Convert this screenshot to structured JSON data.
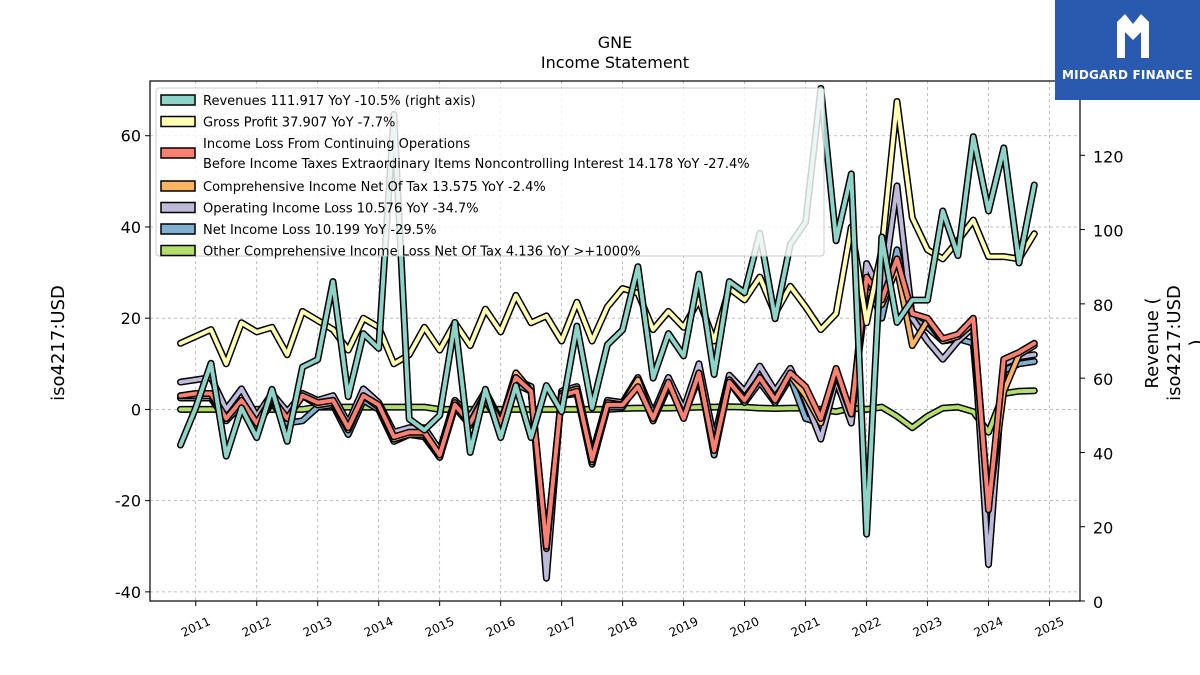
{
  "brand": {
    "name": "MIDGARD FINANCE",
    "logo_color": "#2a5ab0"
  },
  "chart_data": {
    "type": "line",
    "title": "GNE",
    "subtitle": "Income Statement",
    "ylabel": "iso4217:USD",
    "ylabel_right_line1": "Revenue (",
    "ylabel_right_line2": "iso4217:USD",
    "ylabel_right_line3": ")",
    "ylim": [
      -42,
      72
    ],
    "ylim_right": [
      0,
      140
    ],
    "yticks": [
      -40,
      -20,
      0,
      20,
      40,
      60
    ],
    "yticks_right": [
      0,
      20,
      40,
      60,
      80,
      100,
      120
    ],
    "xticks": [
      "2011",
      "2012",
      "2013",
      "2014",
      "2015",
      "2016",
      "2017",
      "2018",
      "2019",
      "2020",
      "2021",
      "2022",
      "2023",
      "2024",
      "2025"
    ],
    "grid": true,
    "legend_position": "top-left",
    "x": [
      "2010-10",
      "2011-01",
      "2011-04",
      "2011-07",
      "2011-10",
      "2012-01",
      "2012-04",
      "2012-07",
      "2012-10",
      "2013-01",
      "2013-04",
      "2013-07",
      "2013-10",
      "2014-01",
      "2014-04",
      "2014-07",
      "2014-10",
      "2015-01",
      "2015-04",
      "2015-07",
      "2015-10",
      "2016-01",
      "2016-04",
      "2016-07",
      "2016-10",
      "2017-01",
      "2017-04",
      "2017-07",
      "2017-10",
      "2018-01",
      "2018-04",
      "2018-07",
      "2018-10",
      "2019-01",
      "2019-04",
      "2019-07",
      "2019-10",
      "2020-01",
      "2020-04",
      "2020-07",
      "2020-10",
      "2021-01",
      "2021-04",
      "2021-07",
      "2021-10",
      "2022-01",
      "2022-04",
      "2022-07",
      "2022-10",
      "2023-01",
      "2023-04",
      "2023-07",
      "2023-10",
      "2024-01",
      "2024-04",
      "2024-07",
      "2024-10"
    ],
    "series": [
      {
        "name": "Revenues  111.917 YoY -10.5% (right axis)",
        "axis": "right",
        "color": "#8dd3c7",
        "values": [
          42,
          52,
          64,
          39,
          52,
          44,
          57,
          43,
          63,
          65,
          86,
          55,
          72,
          68,
          131,
          49,
          46,
          50,
          75,
          40,
          57,
          44,
          58,
          44,
          58,
          51,
          74,
          52,
          69,
          73,
          90,
          60,
          72,
          66,
          88,
          61,
          86,
          83,
          99,
          76,
          96,
          102,
          138,
          97,
          115,
          18,
          98,
          75,
          81,
          81,
          105,
          93,
          125,
          105,
          122,
          91,
          112
        ]
      },
      {
        "name": "Gross Profit  37.907 YoY -7.7%",
        "axis": "left",
        "color": "#ffffb3",
        "values": [
          14.5,
          16.0,
          17.5,
          10.0,
          19.0,
          17.0,
          18.0,
          12.0,
          21.5,
          19.5,
          17.5,
          13.0,
          20.0,
          18.0,
          10.0,
          12.0,
          18.0,
          13.0,
          19.0,
          14.0,
          22.0,
          17.0,
          25.0,
          19.0,
          20.5,
          15.0,
          23.5,
          15.0,
          22.5,
          26.5,
          25.5,
          17.5,
          21.5,
          18.0,
          24.0,
          15.0,
          26.5,
          24.0,
          29.0,
          21.0,
          27.0,
          22.5,
          17.5,
          21.0,
          40.0,
          19.0,
          35.0,
          67.5,
          42.0,
          35.0,
          33.0,
          37.0,
          41.5,
          33.5,
          33.5,
          33.0,
          38.5
        ]
      },
      {
        "name": "Income Loss From Continuing Operations\nBefore Income Taxes Extraordinary Items Noncontrolling Interest  14.178 YoY -27.4%",
        "axis": "left",
        "color": "#fb8072",
        "values": [
          3.0,
          3.5,
          3.5,
          -2.0,
          2.0,
          -3.0,
          2.5,
          -2.0,
          3.0,
          1.5,
          2.0,
          -4.0,
          3.0,
          1.0,
          -6.0,
          -5.0,
          -5.0,
          -10.0,
          1.0,
          -3.0,
          3.0,
          -3.0,
          7.0,
          4.0,
          -30.0,
          3.0,
          4.0,
          -11.0,
          1.0,
          1.0,
          5.0,
          -2.0,
          6.0,
          -2.0,
          8.0,
          -9.0,
          6.0,
          2.0,
          7.0,
          2.0,
          8.0,
          5.0,
          -2.0,
          9.0,
          -1.0,
          29.0,
          24.0,
          33.0,
          21.0,
          20.0,
          15.5,
          16.5,
          20.0,
          -22.0,
          11.0,
          12.5,
          14.5
        ]
      },
      {
        "name": "Comprehensive Income Net Of Tax  13.575 YoY -2.4%",
        "axis": "left",
        "color": "#fdb462",
        "values": [
          3.0,
          3.0,
          3.0,
          -2.0,
          2.0,
          -3.0,
          2.0,
          -2.0,
          3.0,
          1.0,
          1.5,
          -4.5,
          3.0,
          0.5,
          -6.5,
          -5.5,
          -5.5,
          -10.5,
          1.5,
          -3.0,
          3.5,
          -3.0,
          8.0,
          4.0,
          -30.5,
          3.5,
          4.5,
          -11.5,
          1.5,
          1.0,
          6.5,
          -2.5,
          5.5,
          -1.5,
          7.0,
          -8.5,
          6.5,
          2.5,
          7.0,
          2.5,
          7.5,
          3.0,
          -3.0,
          8.0,
          -1.0,
          26.0,
          23.0,
          31.0,
          14.0,
          19.5,
          15.0,
          16.0,
          19.0,
          -21.0,
          4.0,
          12.0,
          14.0
        ]
      },
      {
        "name": "Operating Income Loss  10.576 YoY -34.7%",
        "axis": "left",
        "color": "#bebada",
        "values": [
          6.0,
          6.5,
          7.0,
          0.0,
          4.5,
          -1.5,
          3.5,
          -0.5,
          3.5,
          2.0,
          3.0,
          -3.0,
          4.5,
          1.5,
          -5.0,
          -4.0,
          -4.0,
          -9.0,
          2.0,
          -1.5,
          4.0,
          -2.5,
          6.5,
          5.0,
          -37.0,
          4.0,
          5.0,
          -10.0,
          2.0,
          1.5,
          7.0,
          -1.0,
          7.0,
          0.0,
          10.0,
          -6.5,
          7.5,
          4.0,
          9.5,
          4.0,
          9.0,
          2.0,
          -6.5,
          6.5,
          -3.0,
          32.0,
          25.0,
          49.0,
          20.0,
          15.0,
          11.0,
          15.0,
          18.0,
          -34.0,
          10.0,
          11.5,
          12.0
        ]
      },
      {
        "name": "Net Income Loss  10.199 YoY -29.5%",
        "axis": "left",
        "color": "#80b1d3",
        "values": [
          2.5,
          2.5,
          2.5,
          -2.5,
          1.0,
          -3.5,
          1.5,
          -3.0,
          -2.5,
          0.5,
          1.0,
          -5.5,
          2.0,
          0.0,
          -7.0,
          -5.5,
          -6.0,
          -10.5,
          0.5,
          -3.5,
          2.0,
          -3.5,
          5.5,
          4.0,
          -32.0,
          3.0,
          3.5,
          -12.0,
          0.5,
          0.5,
          6.0,
          -2.5,
          5.0,
          0.0,
          8.0,
          -10.0,
          6.0,
          1.5,
          6.0,
          1.5,
          7.0,
          -2.0,
          -3.0,
          6.0,
          -2.0,
          28.0,
          20.0,
          35.0,
          20.0,
          18.0,
          15.0,
          15.5,
          14.5,
          -24.0,
          8.5,
          10.0,
          10.5
        ]
      },
      {
        "name": "Other Comprehensive Income Loss Net Of Tax  4.136 YoY >+1000%",
        "axis": "left",
        "color": "#b3de69",
        "values": [
          0.0,
          0.0,
          0.0,
          0.0,
          0.0,
          0.0,
          0.0,
          0.0,
          0.0,
          0.5,
          0.5,
          0.5,
          0.5,
          0.5,
          0.5,
          0.5,
          0.5,
          0.0,
          0.0,
          0.0,
          0.0,
          0.0,
          0.0,
          0.0,
          0.0,
          0.0,
          0.0,
          0.0,
          0.0,
          0.2,
          0.3,
          0.3,
          0.3,
          0.4,
          0.5,
          0.5,
          0.6,
          0.5,
          0.3,
          0.2,
          0.3,
          0.3,
          0.0,
          -0.5,
          0.3,
          0.0,
          0.5,
          -1.5,
          -4.0,
          -1.5,
          0.3,
          0.5,
          -0.5,
          -5.0,
          3.5,
          4.0,
          4.1
        ]
      }
    ]
  }
}
